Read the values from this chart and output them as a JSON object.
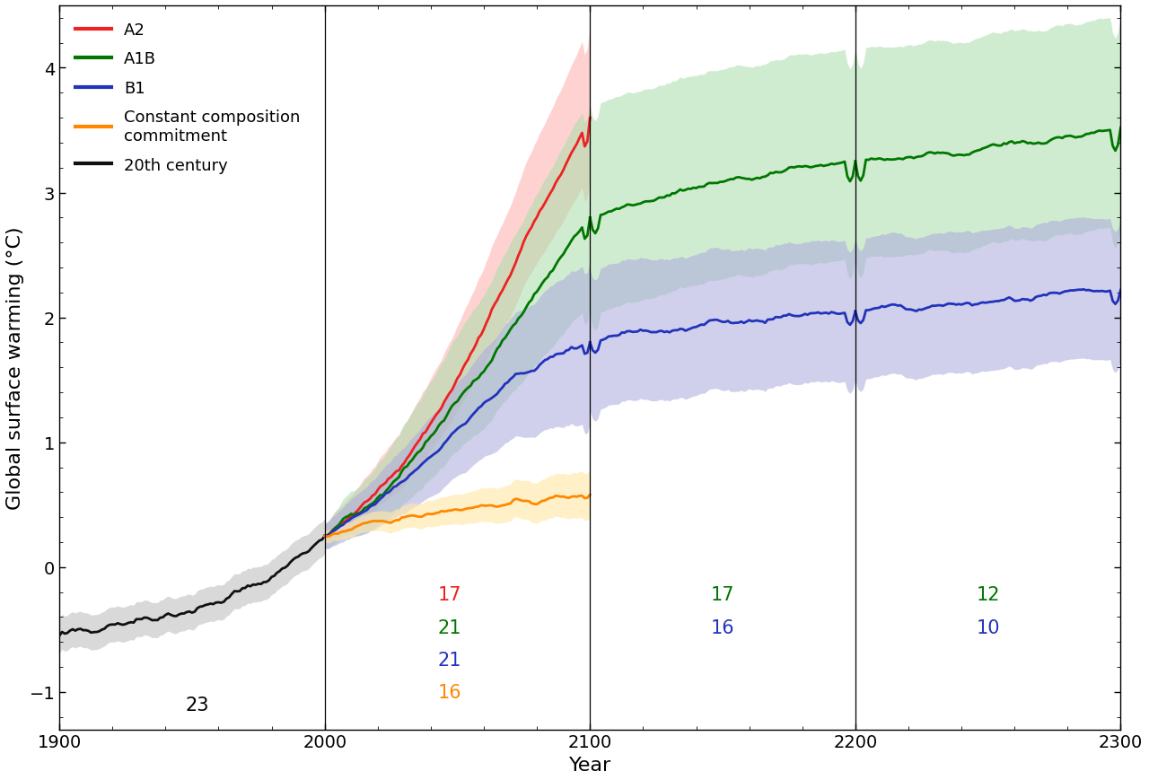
{
  "title": "",
  "xlabel": "Year",
  "ylabel": "Global surface warming (°C)",
  "xlim": [
    1900,
    2300
  ],
  "ylim": [
    -1.3,
    4.5
  ],
  "yticks": [
    -1.0,
    0.0,
    1.0,
    2.0,
    3.0,
    4.0
  ],
  "xticks": [
    1900,
    2000,
    2100,
    2200,
    2300
  ],
  "vlines": [
    2000,
    2100,
    2200
  ],
  "colors": {
    "A2": "#EE2222",
    "A1B": "#007700",
    "B1": "#2233BB",
    "const": "#FF8800",
    "century20": "#111111",
    "A2_shade": "#FFBBBB",
    "A1B_shade": "#AADDAA",
    "B1_shade": "#AAAADD",
    "const_shade": "#FFE8AA",
    "century20_shade": "#BBBBBB"
  },
  "model_counts": {
    "century20_label": "23",
    "century20_x": 1952,
    "century20_y": -1.1,
    "A2_label": "17",
    "A2_x": 2047,
    "A2_y": -0.22,
    "A1B_2100_label": "21",
    "A1B_2100_x": 2047,
    "A1B_2100_y": -0.48,
    "B1_2100_label": "21",
    "B1_2100_x": 2047,
    "B1_2100_y": -0.74,
    "const_label": "16",
    "const_x": 2047,
    "const_y": -1.0,
    "A1B_2200_label": "17",
    "A1B_2200_x": 2150,
    "A1B_2200_y": -0.22,
    "B1_2200_label": "16",
    "B1_2200_x": 2150,
    "B1_2200_y": -0.48,
    "A1B_2300_label": "12",
    "A1B_2300_x": 2250,
    "A1B_2300_y": -0.22,
    "B1_2300_label": "10",
    "B1_2300_x": 2250,
    "B1_2300_y": -0.48
  },
  "background_color": "#FFFFFF",
  "seed": 42
}
